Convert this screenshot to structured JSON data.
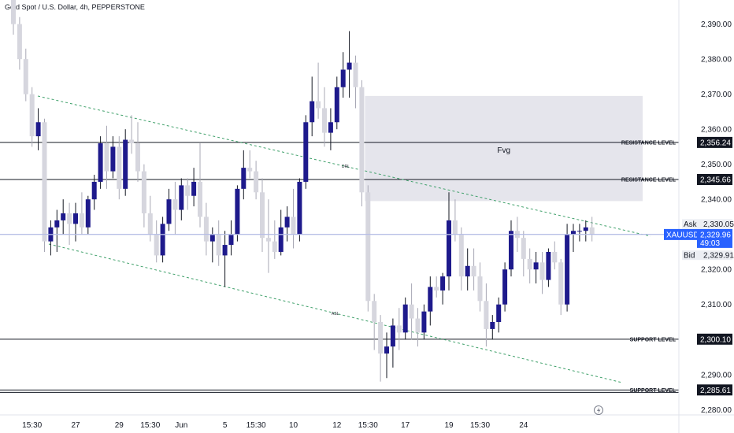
{
  "header": {
    "symbol_title": "Gold Spot / U.S. Dollar, 4h, PEPPERSTONE"
  },
  "chart_data": {
    "type": "candlestick",
    "y_range": [
      2274,
      2398
    ],
    "y_ticks": [
      2280,
      2290,
      2300,
      2310,
      2320,
      2330,
      2340,
      2350,
      2360,
      2370,
      2380,
      2390
    ],
    "y_tick_labels": [
      "2,280.00",
      "2,290.00",
      "2,300.00",
      "2,310.00",
      "2,320.00",
      "2,330.00",
      "2,340.00",
      "2,350.00",
      "2,360.00",
      "2,370.00",
      "2,380.00",
      "2,390.00"
    ],
    "x_tick_labels": [
      "15:30",
      "27",
      "29",
      "15:30",
      "Jun",
      "5",
      "15:30",
      "10",
      "12",
      "15:30",
      "17",
      "19",
      "15:30",
      "24"
    ],
    "x_tick_slots": [
      3,
      10,
      17,
      22,
      27,
      34,
      39,
      45,
      52,
      57,
      63,
      70,
      75,
      82
    ],
    "bull_color": "#1e1a8c",
    "bear_color": "#d6d6de",
    "candles": [
      [
        2397,
        2398,
        2387,
        2390
      ],
      [
        2390,
        2392,
        2377,
        2380
      ],
      [
        2380,
        2383,
        2368,
        2370
      ],
      [
        2370,
        2372,
        2355,
        2358
      ],
      [
        2358,
        2366,
        2354,
        2362
      ],
      [
        2362,
        2363,
        2325,
        2328
      ],
      [
        2328,
        2334,
        2324,
        2332
      ],
      [
        2332,
        2337,
        2325,
        2334
      ],
      [
        2334,
        2340,
        2330,
        2336
      ],
      [
        2336,
        2339,
        2327,
        2333
      ],
      [
        2333,
        2339,
        2328,
        2336
      ],
      [
        2336,
        2342,
        2330,
        2332
      ],
      [
        2332,
        2341,
        2330,
        2340
      ],
      [
        2340,
        2347,
        2337,
        2345
      ],
      [
        2345,
        2358,
        2343,
        2356
      ],
      [
        2356,
        2361,
        2343,
        2348
      ],
      [
        2348,
        2358,
        2346,
        2355
      ],
      [
        2355,
        2358,
        2340,
        2343
      ],
      [
        2343,
        2360,
        2341,
        2357
      ],
      [
        2357,
        2364,
        2353,
        2356
      ],
      [
        2356,
        2362,
        2345,
        2348
      ],
      [
        2348,
        2350,
        2332,
        2336
      ],
      [
        2336,
        2341,
        2328,
        2330
      ],
      [
        2330,
        2334,
        2322,
        2324
      ],
      [
        2324,
        2335,
        2322,
        2333
      ],
      [
        2333,
        2343,
        2331,
        2340
      ],
      [
        2340,
        2345,
        2330,
        2337
      ],
      [
        2337,
        2346,
        2334,
        2344
      ],
      [
        2344,
        2346,
        2337,
        2341
      ],
      [
        2341,
        2349,
        2338,
        2345
      ],
      [
        2345,
        2356,
        2332,
        2335
      ],
      [
        2335,
        2339,
        2324,
        2328
      ],
      [
        2328,
        2332,
        2322,
        2330
      ],
      [
        2330,
        2334,
        2321,
        2324
      ],
      [
        2324,
        2331,
        2315,
        2327
      ],
      [
        2327,
        2334,
        2324,
        2330
      ],
      [
        2330,
        2344,
        2328,
        2343
      ],
      [
        2343,
        2354,
        2340,
        2349
      ],
      [
        2349,
        2354,
        2346,
        2348
      ],
      [
        2348,
        2351,
        2340,
        2342
      ],
      [
        2342,
        2346,
        2325,
        2329
      ],
      [
        2329,
        2340,
        2319,
        2328
      ],
      [
        2328,
        2334,
        2323,
        2325
      ],
      [
        2325,
        2337,
        2324,
        2332
      ],
      [
        2332,
        2338,
        2328,
        2335
      ],
      [
        2335,
        2343,
        2326,
        2330
      ],
      [
        2330,
        2346,
        2328,
        2345
      ],
      [
        2345,
        2364,
        2343,
        2362
      ],
      [
        2362,
        2375,
        2358,
        2368
      ],
      [
        2368,
        2379,
        2363,
        2366
      ],
      [
        2366,
        2372,
        2355,
        2359
      ],
      [
        2359,
        2366,
        2354,
        2362
      ],
      [
        2362,
        2375,
        2360,
        2372
      ],
      [
        2372,
        2382,
        2369,
        2377
      ],
      [
        2377,
        2388,
        2369,
        2379
      ],
      [
        2379,
        2381,
        2366,
        2372
      ],
      [
        2372,
        2374,
        2338,
        2342
      ],
      [
        2342,
        2344,
        2308,
        2311
      ],
      [
        2311,
        2313,
        2297,
        2305
      ],
      [
        2305,
        2307,
        2288,
        2296
      ],
      [
        2296,
        2302,
        2289,
        2298
      ],
      [
        2298,
        2306,
        2292,
        2304
      ],
      [
        2304,
        2309,
        2297,
        2302
      ],
      [
        2302,
        2312,
        2300,
        2310
      ],
      [
        2310,
        2316,
        2300,
        2306
      ],
      [
        2306,
        2309,
        2298,
        2302
      ],
      [
        2302,
        2310,
        2300,
        2308
      ],
      [
        2308,
        2318,
        2304,
        2315
      ],
      [
        2315,
        2318,
        2312,
        2314
      ],
      [
        2314,
        2319,
        2310,
        2318
      ],
      [
        2318,
        2342,
        2314,
        2334
      ],
      [
        2334,
        2340,
        2328,
        2330
      ],
      [
        2330,
        2332,
        2314,
        2318
      ],
      [
        2318,
        2326,
        2314,
        2321
      ],
      [
        2321,
        2326,
        2314,
        2318
      ],
      [
        2318,
        2322,
        2308,
        2311
      ],
      [
        2311,
        2316,
        2298,
        2303
      ],
      [
        2303,
        2307,
        2300,
        2305
      ],
      [
        2305,
        2312,
        2302,
        2310
      ],
      [
        2310,
        2322,
        2308,
        2320
      ],
      [
        2320,
        2334,
        2318,
        2331
      ],
      [
        2331,
        2335,
        2325,
        2329
      ],
      [
        2329,
        2331,
        2318,
        2323
      ],
      [
        2323,
        2326,
        2316,
        2320
      ],
      [
        2320,
        2325,
        2316,
        2322
      ],
      [
        2322,
        2325,
        2313,
        2317
      ],
      [
        2317,
        2326,
        2315,
        2325
      ],
      [
        2325,
        2328,
        2320,
        2322
      ],
      [
        2322,
        2323,
        2307,
        2310
      ],
      [
        2310,
        2333,
        2308,
        2330
      ],
      [
        2330,
        2333,
        2325,
        2331
      ],
      [
        2331,
        2333,
        2328,
        2331
      ],
      [
        2331,
        2334,
        2328,
        2332
      ],
      [
        2332,
        2335,
        2328,
        2330
      ]
    ],
    "levels": [
      {
        "label": "RESISTANCE LEVEL",
        "value": "2,356.24",
        "y": 2356.24
      },
      {
        "label": "RESISTANCE LEVEL",
        "value": "2,345.66",
        "y": 2345.66
      },
      {
        "label": "SUPPORT LEVEL",
        "value": "2,300.10",
        "y": 2300.1
      },
      {
        "label": "SUPPORT LEVEL",
        "value": "2,285.61",
        "y": 2285.61
      }
    ],
    "fvg": {
      "label": "Fvg",
      "top": 2369.5,
      "bottom": 2339.5,
      "slot_start": 56
    },
    "channel_labels": {
      "upper": "DRL",
      "lower": "ASL"
    },
    "quote": {
      "ask_label": "Ask",
      "ask_value": "2,330.05",
      "symbol": "XAUUSD",
      "price": "2,329.96",
      "countdown": "49:03",
      "bid_label": "Bid",
      "bid_value": "2,329.91"
    }
  }
}
